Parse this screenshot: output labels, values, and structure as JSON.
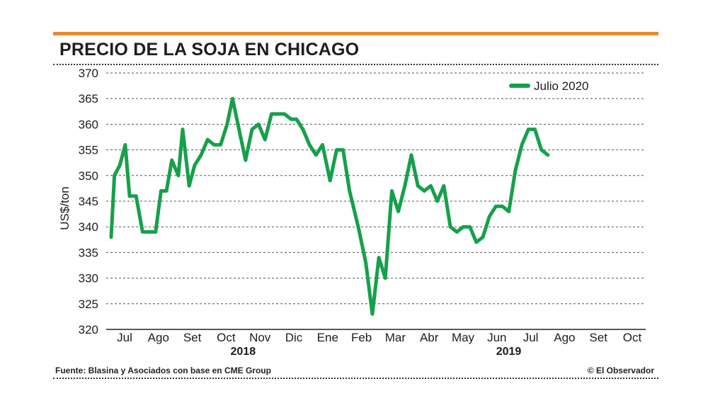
{
  "title": "PRECIO DE LA SOJA EN CHICAGO",
  "source": "Fuente: Blasina y Asociados con base en CME Group",
  "credit": "© El Observador",
  "colors": {
    "accent": "#e8892f",
    "series": "#16a04a",
    "grid": "#555555"
  },
  "chart_data": {
    "type": "line",
    "ylabel": "US$/ton",
    "ylim": [
      320,
      370
    ],
    "yticks": [
      320,
      325,
      330,
      335,
      340,
      345,
      350,
      355,
      360,
      365,
      370
    ],
    "grid": "horizontal dotted",
    "legend_position": "top-right",
    "month_labels": [
      "Jul",
      "Ago",
      "Set",
      "Oct",
      "Nov",
      "Dic",
      "Ene",
      "Feb",
      "Mar",
      "Abr",
      "May",
      "Jun",
      "Jul",
      "Ago",
      "Set",
      "Oct"
    ],
    "year_labels": [
      {
        "label": "2018",
        "at_month_index": 3.5
      },
      {
        "label": "2019",
        "at_month_index": 11.35
      }
    ],
    "x_start": "2018-06-19",
    "x_end": "2019-10-22",
    "series": [
      {
        "name": "Julio 2020",
        "color": "#16a04a",
        "points": [
          [
            "2018-06-19",
            338
          ],
          [
            "2018-06-22",
            350
          ],
          [
            "2018-06-27",
            352
          ],
          [
            "2018-07-02",
            356
          ],
          [
            "2018-07-06",
            346
          ],
          [
            "2018-07-12",
            346
          ],
          [
            "2018-07-18",
            339
          ],
          [
            "2018-07-24",
            339
          ],
          [
            "2018-07-30",
            339
          ],
          [
            "2018-08-04",
            347
          ],
          [
            "2018-08-09",
            347
          ],
          [
            "2018-08-14",
            353
          ],
          [
            "2018-08-20",
            350
          ],
          [
            "2018-08-24",
            359
          ],
          [
            "2018-08-30",
            348
          ],
          [
            "2018-09-04",
            352
          ],
          [
            "2018-09-10",
            354
          ],
          [
            "2018-09-16",
            357
          ],
          [
            "2018-09-22",
            356
          ],
          [
            "2018-09-28",
            356
          ],
          [
            "2018-10-04",
            360
          ],
          [
            "2018-10-09",
            365
          ],
          [
            "2018-10-15",
            359
          ],
          [
            "2018-10-21",
            353
          ],
          [
            "2018-10-27",
            359
          ],
          [
            "2018-11-02",
            360
          ],
          [
            "2018-11-08",
            357
          ],
          [
            "2018-11-14",
            362
          ],
          [
            "2018-11-20",
            362
          ],
          [
            "2018-11-26",
            362
          ],
          [
            "2018-12-02",
            361
          ],
          [
            "2018-12-07",
            361
          ],
          [
            "2018-12-13",
            359
          ],
          [
            "2018-12-19",
            356
          ],
          [
            "2018-12-25",
            354
          ],
          [
            "2018-12-31",
            356
          ],
          [
            "2019-01-07",
            349
          ],
          [
            "2019-01-13",
            355
          ],
          [
            "2019-01-19",
            355
          ],
          [
            "2019-01-25",
            347
          ],
          [
            "2019-02-02",
            340
          ],
          [
            "2019-02-09",
            333
          ],
          [
            "2019-02-15",
            323
          ],
          [
            "2019-02-21",
            334
          ],
          [
            "2019-02-27",
            330
          ],
          [
            "2019-03-05",
            347
          ],
          [
            "2019-03-11",
            343
          ],
          [
            "2019-03-17",
            348
          ],
          [
            "2019-03-23",
            354
          ],
          [
            "2019-03-29",
            348
          ],
          [
            "2019-04-04",
            347
          ],
          [
            "2019-04-10",
            348
          ],
          [
            "2019-04-16",
            345
          ],
          [
            "2019-04-22",
            348
          ],
          [
            "2019-04-28",
            340
          ],
          [
            "2019-05-04",
            339
          ],
          [
            "2019-05-10",
            340
          ],
          [
            "2019-05-16",
            340
          ],
          [
            "2019-05-22",
            337
          ],
          [
            "2019-05-28",
            338
          ],
          [
            "2019-06-03",
            342
          ],
          [
            "2019-06-09",
            344
          ],
          [
            "2019-06-15",
            344
          ],
          [
            "2019-06-21",
            343
          ],
          [
            "2019-06-27",
            351
          ],
          [
            "2019-07-03",
            356
          ],
          [
            "2019-07-09",
            359
          ],
          [
            "2019-07-15",
            359
          ],
          [
            "2019-07-21",
            355
          ],
          [
            "2019-07-27",
            354
          ]
        ]
      }
    ]
  }
}
